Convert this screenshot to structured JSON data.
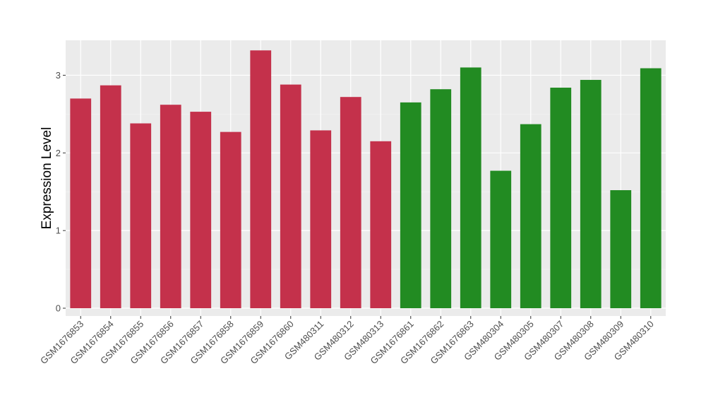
{
  "chart_data": {
    "type": "bar",
    "ylabel": "Expression Level",
    "xlabel": "",
    "ylim": [
      -0.1,
      3.45
    ],
    "yticks": [
      0,
      1,
      2,
      3
    ],
    "grid": true,
    "background": "#ebebeb",
    "categories": [
      "GSM1676853",
      "GSM1676854",
      "GSM1676855",
      "GSM1676856",
      "GSM1676857",
      "GSM1676858",
      "GSM1676859",
      "GSM1676860",
      "GSM480311",
      "GSM480312",
      "GSM480313",
      "GSM1676861",
      "GSM1676862",
      "GSM1676863",
      "GSM480304",
      "GSM480305",
      "GSM480307",
      "GSM480308",
      "GSM480309",
      "GSM480310"
    ],
    "values": [
      2.7,
      2.87,
      2.38,
      2.62,
      2.53,
      2.27,
      3.32,
      2.88,
      2.29,
      2.72,
      2.15,
      2.65,
      2.82,
      3.1,
      1.77,
      2.37,
      2.84,
      2.94,
      1.52,
      3.09
    ],
    "groups": [
      "red",
      "red",
      "red",
      "red",
      "red",
      "red",
      "red",
      "red",
      "red",
      "red",
      "red",
      "green",
      "green",
      "green",
      "green",
      "green",
      "green",
      "green",
      "green",
      "green"
    ],
    "colors": {
      "red": "#c4314b",
      "green": "#228b22"
    }
  }
}
